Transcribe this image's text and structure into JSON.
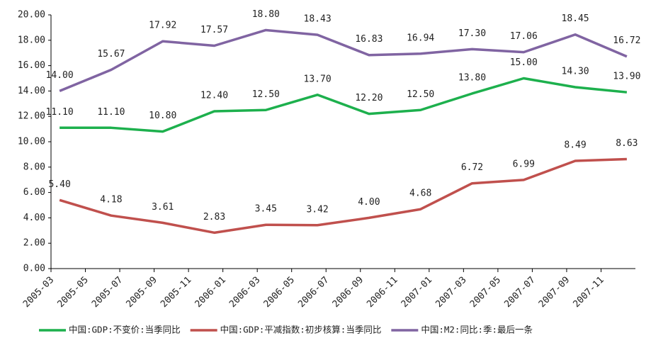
{
  "chart_data": {
    "type": "line",
    "x": [
      "2005-03",
      "2005-06",
      "2005-09",
      "2005-12",
      "2006-03",
      "2006-06",
      "2006-09",
      "2006-12",
      "2007-03",
      "2007-06",
      "2007-09",
      "2007-12"
    ],
    "xlim": [
      "2005-03",
      "2008-01"
    ],
    "xticks": [
      "2005-03",
      "2005-05",
      "2005-07",
      "2005-09",
      "2005-11",
      "2006-01",
      "2006-03",
      "2006-05",
      "2006-07",
      "2006-09",
      "2006-11",
      "2007-01",
      "2007-03",
      "2007-05",
      "2007-07",
      "2007-09",
      "2007-11"
    ],
    "ylim": [
      0,
      20
    ],
    "yticks": [
      {
        "value": 0,
        "label": "0.00"
      },
      {
        "value": 2,
        "label": "2.00"
      },
      {
        "value": 4,
        "label": "4.00"
      },
      {
        "value": 6,
        "label": "6.00"
      },
      {
        "value": 8,
        "label": "8.00"
      },
      {
        "value": 10,
        "label": "10.00"
      },
      {
        "value": 12,
        "label": "12.00"
      },
      {
        "value": 14,
        "label": "14.00"
      },
      {
        "value": 16,
        "label": "16.00"
      },
      {
        "value": 18,
        "label": "18.00"
      },
      {
        "value": 20,
        "label": "20.00"
      }
    ],
    "legend": "bottom",
    "series": [
      {
        "name": "中国:GDP:不变价:当季同比",
        "color": "#1db04d",
        "values": [
          11.1,
          11.1,
          10.8,
          12.4,
          12.5,
          13.7,
          12.2,
          12.5,
          13.8,
          15.0,
          14.3,
          13.9
        ],
        "value_labels": [
          "11.10",
          "11.10",
          "10.80",
          "12.40",
          "12.50",
          "13.70",
          "12.20",
          "12.50",
          "13.80",
          "15.00",
          "14.30",
          "13.90"
        ]
      },
      {
        "name": "中国:GDP:平减指数:初步核算:当季同比",
        "color": "#c0504d",
        "values": [
          5.4,
          4.18,
          3.61,
          2.83,
          3.45,
          3.42,
          4.0,
          4.68,
          6.72,
          6.99,
          8.49,
          8.63
        ],
        "value_labels": [
          "5.40",
          "4.18",
          "3.61",
          "2.83",
          "3.45",
          "3.42",
          "4.00",
          "4.68",
          "6.72",
          "6.99",
          "8.49",
          "8.63"
        ]
      },
      {
        "name": "中国:M2:同比:季:最后一条",
        "color": "#8064a2",
        "values": [
          14.0,
          15.67,
          17.92,
          17.57,
          18.8,
          18.43,
          16.83,
          16.94,
          17.3,
          17.06,
          18.45,
          16.72
        ],
        "value_labels": [
          "14.00",
          "15.67",
          "17.92",
          "17.57",
          "18.80",
          "18.43",
          "16.83",
          "16.94",
          "17.30",
          "17.06",
          "18.45",
          "16.72"
        ]
      }
    ]
  }
}
